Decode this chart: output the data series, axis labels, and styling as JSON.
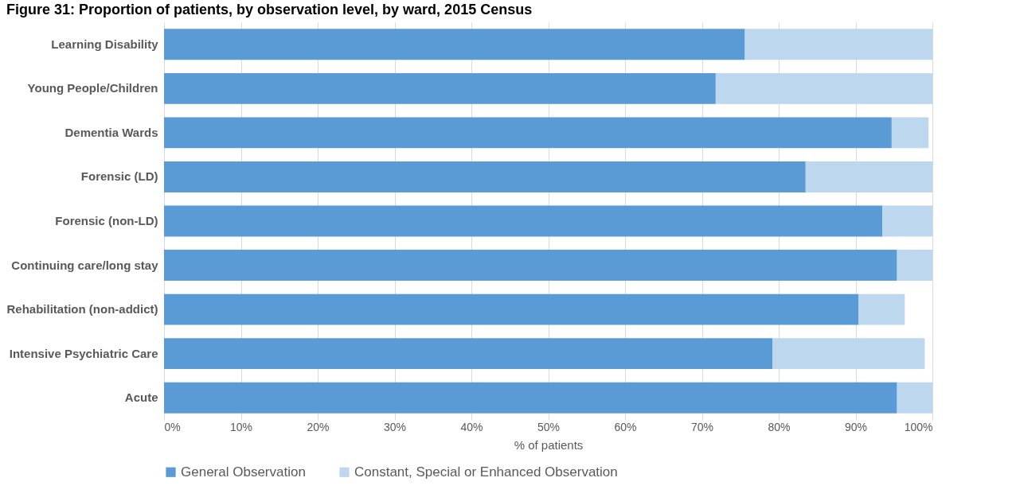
{
  "chart_data": {
    "type": "bar",
    "orientation": "horizontal",
    "stacked": true,
    "title": "Figure 31: Proportion of patients, by observation level, by ward, 2015 Census",
    "categories": [
      "Learning Disability",
      "Young People/Children",
      "Dementia Wards",
      "Forensic (LD)",
      "Forensic (non-LD)",
      "Continuing care/long stay",
      "Rehabilitation (non-addict)",
      "Intensive Psychiatric Care",
      "Acute"
    ],
    "series": [
      {
        "name": "General Observation",
        "color": "#5b9bd5",
        "values": [
          75.6,
          71.8,
          94.7,
          83.5,
          93.5,
          95.4,
          90.4,
          79.2,
          95.4
        ]
      },
      {
        "name": "Constant, Special or Enhanced Observation",
        "color": "#bdd7ee",
        "values": [
          24.4,
          28.2,
          4.8,
          16.5,
          6.5,
          4.6,
          6.0,
          19.8,
          4.6
        ]
      }
    ],
    "xlabel": "% of patients",
    "xlim": [
      0,
      100
    ],
    "xticks": [
      {
        "value": 0,
        "label": "0%"
      },
      {
        "value": 10,
        "label": "10%"
      },
      {
        "value": 20,
        "label": "20%"
      },
      {
        "value": 30,
        "label": "30%"
      },
      {
        "value": 40,
        "label": "40%"
      },
      {
        "value": 50,
        "label": "50%"
      },
      {
        "value": 60,
        "label": "60%"
      },
      {
        "value": 70,
        "label": "70%"
      },
      {
        "value": 80,
        "label": "80%"
      },
      {
        "value": 90,
        "label": "90%"
      },
      {
        "value": 100,
        "label": "100%"
      }
    ],
    "grid": "x",
    "legend": "bottom"
  }
}
